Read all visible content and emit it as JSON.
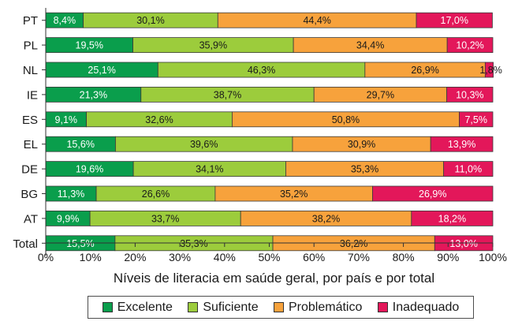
{
  "chart_data": {
    "type": "bar",
    "orientation": "horizontal",
    "stacked": true,
    "categories": [
      "PT",
      "PL",
      "NL",
      "IE",
      "ES",
      "EL",
      "DE",
      "BG",
      "AT",
      "Total"
    ],
    "category_labels": [
      "PT",
      "PL",
      "NL",
      "IE",
      "ES",
      "EL",
      "DE",
      "BG",
      "AT",
      "Total"
    ],
    "series": [
      {
        "name": "Excelente",
        "color": "#0a9e4c",
        "values": [
          8.4,
          19.5,
          25.1,
          21.3,
          9.1,
          15.6,
          19.6,
          11.3,
          9.9,
          15.5
        ],
        "labels": [
          "8,4%",
          "19,5%",
          "25,1%",
          "21,3%",
          "9,1%",
          "15,6%",
          "19,6%",
          "11,3%",
          "9,9%",
          "15,5%"
        ]
      },
      {
        "name": "Suficiente",
        "color": "#9ccc3c",
        "values": [
          30.1,
          35.9,
          46.3,
          38.7,
          32.6,
          39.6,
          34.1,
          26.6,
          33.7,
          35.3
        ],
        "labels": [
          "30,1%",
          "35,9%",
          "46,3%",
          "38,7%",
          "32,6%",
          "39,6%",
          "34,1%",
          "26,6%",
          "33,7%",
          "35,3%"
        ]
      },
      {
        "name": "Problemático",
        "color": "#f7a23c",
        "values": [
          44.4,
          34.4,
          26.9,
          29.7,
          50.8,
          30.9,
          35.3,
          35.2,
          38.2,
          36.2
        ],
        "labels": [
          "44,4%",
          "34,4%",
          "26,9%",
          "29,7%",
          "50,8%",
          "30,9%",
          "35,3%",
          "35,2%",
          "38,2%",
          "36,2%"
        ]
      },
      {
        "name": "Inadequado",
        "color": "#e3175a",
        "values": [
          17.0,
          10.2,
          1.8,
          10.3,
          7.5,
          13.9,
          11.0,
          26.9,
          18.2,
          13.0
        ],
        "labels": [
          "17,0%",
          "10,2%",
          "1,8%",
          "10,3%",
          "7,5%",
          "13,9%",
          "11,0%",
          "26,9%",
          "18,2%",
          "13,0%"
        ]
      }
    ],
    "x_ticks": [
      "0%",
      "10%",
      "20%",
      "30%",
      "40%",
      "50%",
      "60%",
      "70%",
      "80%",
      "90%",
      "100%"
    ],
    "xlim": [
      0,
      100
    ],
    "xlabel": "Níveis de literacia em saúde geral, por país e por total",
    "ylabel": "",
    "title": "",
    "grid": false,
    "legend_position": "bottom"
  }
}
